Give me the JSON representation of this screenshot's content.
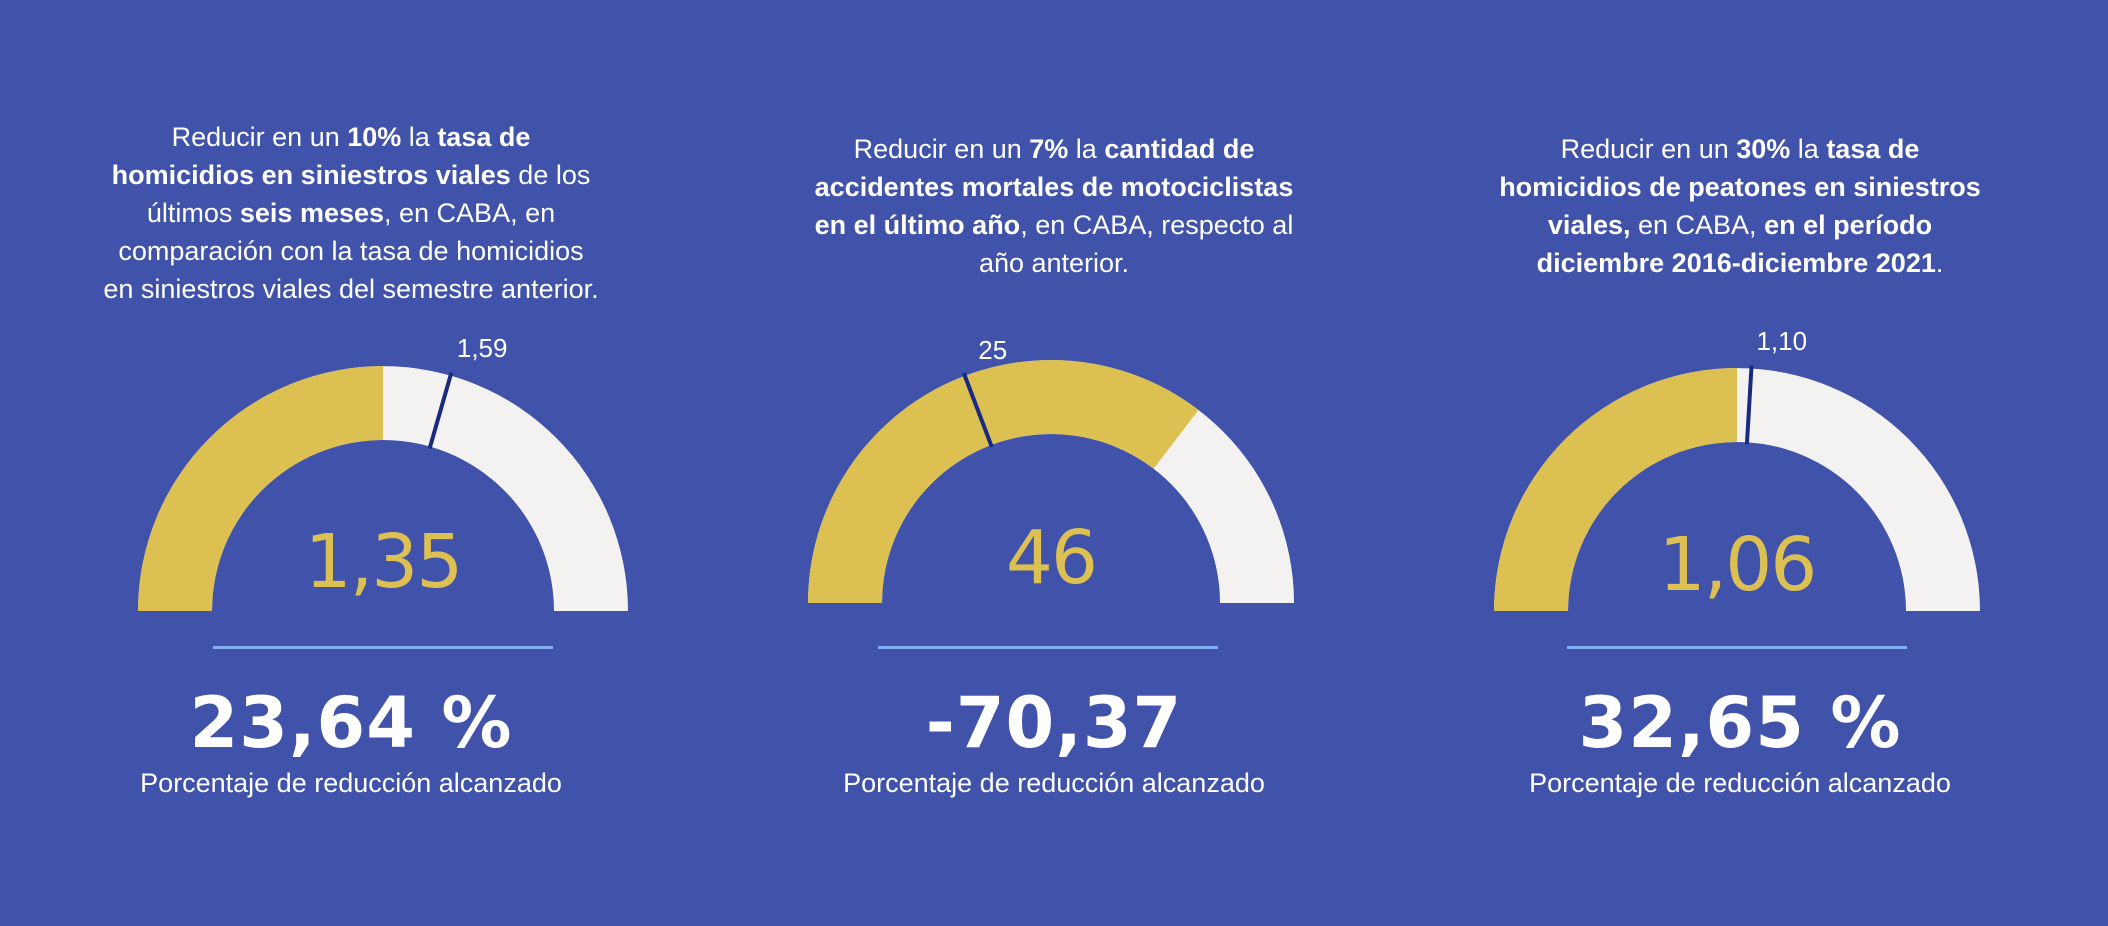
{
  "kpis": [
    {
      "goal_parts": [
        {
          "t": "Reducir en un ",
          "b": false
        },
        {
          "t": "10%",
          "b": true
        },
        {
          "t": " la ",
          "b": false
        },
        {
          "t": "tasa de homicidios en siniestros viales",
          "b": true
        },
        {
          "t": " de los últimos ",
          "b": false
        },
        {
          "t": "seis meses",
          "b": true
        },
        {
          "t": ", en CABA, en comparación con la tasa de homicidios en siniestros viales del semestre anterior.",
          "b": false
        }
      ],
      "gauge_value": "1,35",
      "target_label": "1,59",
      "result": "23,64 %",
      "result_label": "Porcentaje de reducción alcanzado"
    },
    {
      "goal_parts": [
        {
          "t": "Reducir en un ",
          "b": false
        },
        {
          "t": "7%",
          "b": true
        },
        {
          "t": " la ",
          "b": false
        },
        {
          "t": "cantidad de accidentes mortales de motociclistas en el último año",
          "b": true
        },
        {
          "t": ", en CABA, respecto al año anterior.",
          "b": false
        }
      ],
      "gauge_value": "46",
      "target_label": "25",
      "result": "-70,37",
      "result_label": "Porcentaje de reducción alcanzado"
    },
    {
      "goal_parts": [
        {
          "t": "Reducir en un ",
          "b": false
        },
        {
          "t": "30%",
          "b": true
        },
        {
          "t": " la ",
          "b": false
        },
        {
          "t": "tasa de homicidios de peatones en siniestros viales,",
          "b": true
        },
        {
          "t": " en CABA, ",
          "b": false
        },
        {
          "t": "en el período diciembre 2016-diciembre 2021",
          "b": true
        },
        {
          "t": ".",
          "b": false
        }
      ],
      "gauge_value": "1,06",
      "target_label": "1,10",
      "result": "32,65 %",
      "result_label": "Porcentaje de reducción alcanzado"
    }
  ],
  "chart_data": [
    {
      "type": "gauge",
      "value": 1.35,
      "target": 1.59,
      "min": 0,
      "max": 2.7
    },
    {
      "type": "gauge",
      "value": 46,
      "target": 25,
      "min": 0,
      "max": 65
    },
    {
      "type": "gauge",
      "value": 1.06,
      "target": 1.1,
      "min": 0,
      "max": 2.12
    }
  ],
  "colors": {
    "background": "#4152ab",
    "gauge_fill": "#dcc152",
    "gauge_track": "#f3f2f1",
    "target_marker": "#1a2a80",
    "divider": "#7fb0f3"
  }
}
